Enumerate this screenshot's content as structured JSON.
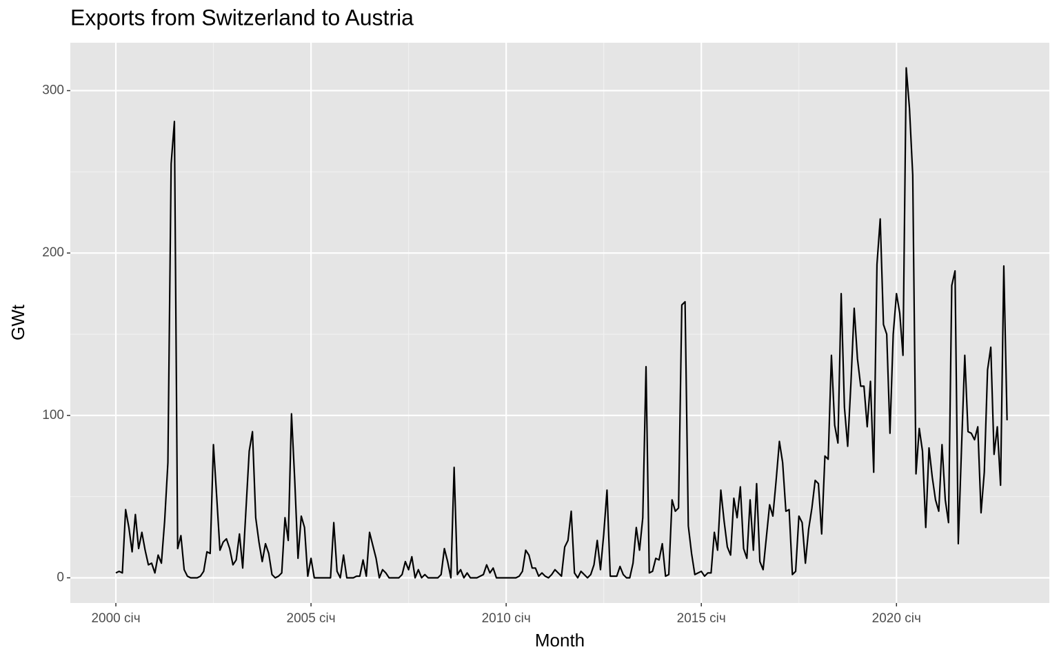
{
  "chart_data": {
    "type": "line",
    "title": "Exports from Switzerland to Austria",
    "x_label": "Month",
    "y_label": "GWt",
    "x": [
      "2000-01",
      "2000-02",
      "2000-03",
      "2000-04",
      "2000-05",
      "2000-06",
      "2000-07",
      "2000-08",
      "2000-09",
      "2000-10",
      "2000-11",
      "2000-12",
      "2001-01",
      "2001-02",
      "2001-03",
      "2001-04",
      "2001-05",
      "2001-06",
      "2001-07",
      "2001-08",
      "2001-09",
      "2001-10",
      "2001-11",
      "2001-12",
      "2002-01",
      "2002-02",
      "2002-03",
      "2002-04",
      "2002-05",
      "2002-06",
      "2002-07",
      "2002-08",
      "2002-09",
      "2002-10",
      "2002-11",
      "2002-12",
      "2003-01",
      "2003-02",
      "2003-03",
      "2003-04",
      "2003-05",
      "2003-06",
      "2003-07",
      "2003-08",
      "2003-09",
      "2003-10",
      "2003-11",
      "2003-12",
      "2004-01",
      "2004-02",
      "2004-03",
      "2004-04",
      "2004-05",
      "2004-06",
      "2004-07",
      "2004-08",
      "2004-09",
      "2004-10",
      "2004-11",
      "2004-12",
      "2005-01",
      "2005-02",
      "2005-03",
      "2005-04",
      "2005-05",
      "2005-06",
      "2005-07",
      "2005-08",
      "2005-09",
      "2005-10",
      "2005-11",
      "2005-12",
      "2006-01",
      "2006-02",
      "2006-03",
      "2006-04",
      "2006-05",
      "2006-06",
      "2006-07",
      "2006-08",
      "2006-09",
      "2006-10",
      "2006-11",
      "2006-12",
      "2007-01",
      "2007-02",
      "2007-03",
      "2007-04",
      "2007-05",
      "2007-06",
      "2007-07",
      "2007-08",
      "2007-09",
      "2007-10",
      "2007-11",
      "2007-12",
      "2008-01",
      "2008-02",
      "2008-03",
      "2008-04",
      "2008-05",
      "2008-06",
      "2008-07",
      "2008-08",
      "2008-09",
      "2008-10",
      "2008-11",
      "2008-12",
      "2009-01",
      "2009-02",
      "2009-03",
      "2009-04",
      "2009-05",
      "2009-06",
      "2009-07",
      "2009-08",
      "2009-09",
      "2009-10",
      "2009-11",
      "2009-12",
      "2010-01",
      "2010-02",
      "2010-03",
      "2010-04",
      "2010-05",
      "2010-06",
      "2010-07",
      "2010-08",
      "2010-09",
      "2010-10",
      "2010-11",
      "2010-12",
      "2011-01",
      "2011-02",
      "2011-03",
      "2011-04",
      "2011-05",
      "2011-06",
      "2011-07",
      "2011-08",
      "2011-09",
      "2011-10",
      "2011-11",
      "2011-12",
      "2012-01",
      "2012-02",
      "2012-03",
      "2012-04",
      "2012-05",
      "2012-06",
      "2012-07",
      "2012-08",
      "2012-09",
      "2012-10",
      "2012-11",
      "2012-12",
      "2013-01",
      "2013-02",
      "2013-03",
      "2013-04",
      "2013-05",
      "2013-06",
      "2013-07",
      "2013-08",
      "2013-09",
      "2013-10",
      "2013-11",
      "2013-12",
      "2014-01",
      "2014-02",
      "2014-03",
      "2014-04",
      "2014-05",
      "2014-06",
      "2014-07",
      "2014-08",
      "2014-09",
      "2014-10",
      "2014-11",
      "2014-12",
      "2015-01",
      "2015-02",
      "2015-03",
      "2015-04",
      "2015-05",
      "2015-06",
      "2015-07",
      "2015-08",
      "2015-09",
      "2015-10",
      "2015-11",
      "2015-12",
      "2016-01",
      "2016-02",
      "2016-03",
      "2016-04",
      "2016-05",
      "2016-06",
      "2016-07",
      "2016-08",
      "2016-09",
      "2016-10",
      "2016-11",
      "2016-12",
      "2017-01",
      "2017-02",
      "2017-03",
      "2017-04",
      "2017-05",
      "2017-06",
      "2017-07",
      "2017-08",
      "2017-09",
      "2017-10",
      "2017-11",
      "2017-12",
      "2018-01",
      "2018-02",
      "2018-03",
      "2018-04",
      "2018-05",
      "2018-06",
      "2018-07",
      "2018-08",
      "2018-09",
      "2018-10",
      "2018-11",
      "2018-12",
      "2019-01",
      "2019-02",
      "2019-03",
      "2019-04",
      "2019-05",
      "2019-06",
      "2019-07",
      "2019-08",
      "2019-09",
      "2019-10",
      "2019-11",
      "2019-12",
      "2020-01",
      "2020-02",
      "2020-03",
      "2020-04",
      "2020-05",
      "2020-06",
      "2020-07",
      "2020-08",
      "2020-09",
      "2020-10",
      "2020-11",
      "2020-12",
      "2021-01",
      "2021-02",
      "2021-03",
      "2021-04",
      "2021-05",
      "2021-06",
      "2021-07",
      "2021-08",
      "2021-09",
      "2021-10",
      "2021-11",
      "2021-12",
      "2022-01",
      "2022-02",
      "2022-03",
      "2022-04",
      "2022-05",
      "2022-06",
      "2022-07",
      "2022-08",
      "2022-09",
      "2022-10",
      "2022-11"
    ],
    "values": [
      3,
      4,
      3,
      42,
      31,
      16,
      39,
      18,
      28,
      17,
      8,
      9,
      3,
      14,
      9,
      35,
      71,
      255,
      281,
      18,
      26,
      5,
      1,
      0,
      0,
      0,
      1,
      4,
      16,
      15,
      82,
      50,
      17,
      22,
      24,
      18,
      8,
      11,
      27,
      6,
      42,
      78,
      90,
      37,
      22,
      10,
      21,
      15,
      2,
      0,
      1,
      3,
      37,
      23,
      101,
      60,
      12,
      38,
      31,
      1,
      12,
      0,
      0,
      0,
      0,
      0,
      0,
      34,
      4,
      0,
      14,
      0,
      0,
      0,
      1,
      1,
      11,
      1,
      28,
      20,
      12,
      0,
      5,
      3,
      0,
      0,
      0,
      0,
      2,
      10,
      5,
      13,
      0,
      5,
      0,
      2,
      0,
      0,
      0,
      0,
      2,
      18,
      10,
      0,
      68,
      2,
      5,
      0,
      3,
      0,
      0,
      0,
      1,
      2,
      8,
      3,
      6,
      0,
      0,
      0,
      0,
      0,
      0,
      0,
      1,
      4,
      17,
      14,
      6,
      6,
      1,
      3,
      1,
      0,
      2,
      5,
      3,
      1,
      19,
      23,
      41,
      3,
      0,
      4,
      2,
      0,
      2,
      8,
      23,
      5,
      27,
      54,
      1,
      1,
      1,
      7,
      2,
      0,
      0,
      9,
      31,
      17,
      37,
      130,
      3,
      4,
      12,
      11,
      21,
      1,
      2,
      48,
      41,
      43,
      168,
      170,
      32,
      15,
      2,
      3,
      4,
      1,
      3,
      3,
      28,
      17,
      54,
      35,
      19,
      14,
      49,
      37,
      56,
      18,
      12,
      48,
      17,
      58,
      10,
      5,
      25,
      45,
      38,
      60,
      84,
      71,
      41,
      42,
      2,
      4,
      38,
      34,
      9,
      30,
      43,
      60,
      58,
      27,
      75,
      73,
      137,
      94,
      83,
      175,
      105,
      81,
      120,
      166,
      135,
      118,
      118,
      93,
      121,
      65,
      193,
      221,
      156,
      150,
      89,
      150,
      175,
      163,
      137,
      314,
      289,
      248,
      64,
      92,
      78,
      31,
      80,
      62,
      48,
      41,
      82,
      48,
      34,
      180,
      189,
      21,
      80,
      137,
      90,
      89,
      85,
      93,
      40,
      65,
      128,
      142,
      76,
      93,
      57,
      192,
      97
    ],
    "color": "#000000",
    "xlim": [
      "1998-11",
      "2023-12"
    ],
    "xticks": [
      {
        "value": "2000-01",
        "label": "2000 січ"
      },
      {
        "value": "2005-01",
        "label": "2005 січ"
      },
      {
        "value": "2010-01",
        "label": "2010 січ"
      },
      {
        "value": "2015-01",
        "label": "2015 січ"
      },
      {
        "value": "2020-01",
        "label": "2020 січ"
      }
    ],
    "ylim": [
      -15.5,
      329.5
    ],
    "yticks": [
      0,
      100,
      200,
      300
    ],
    "grid": true
  }
}
